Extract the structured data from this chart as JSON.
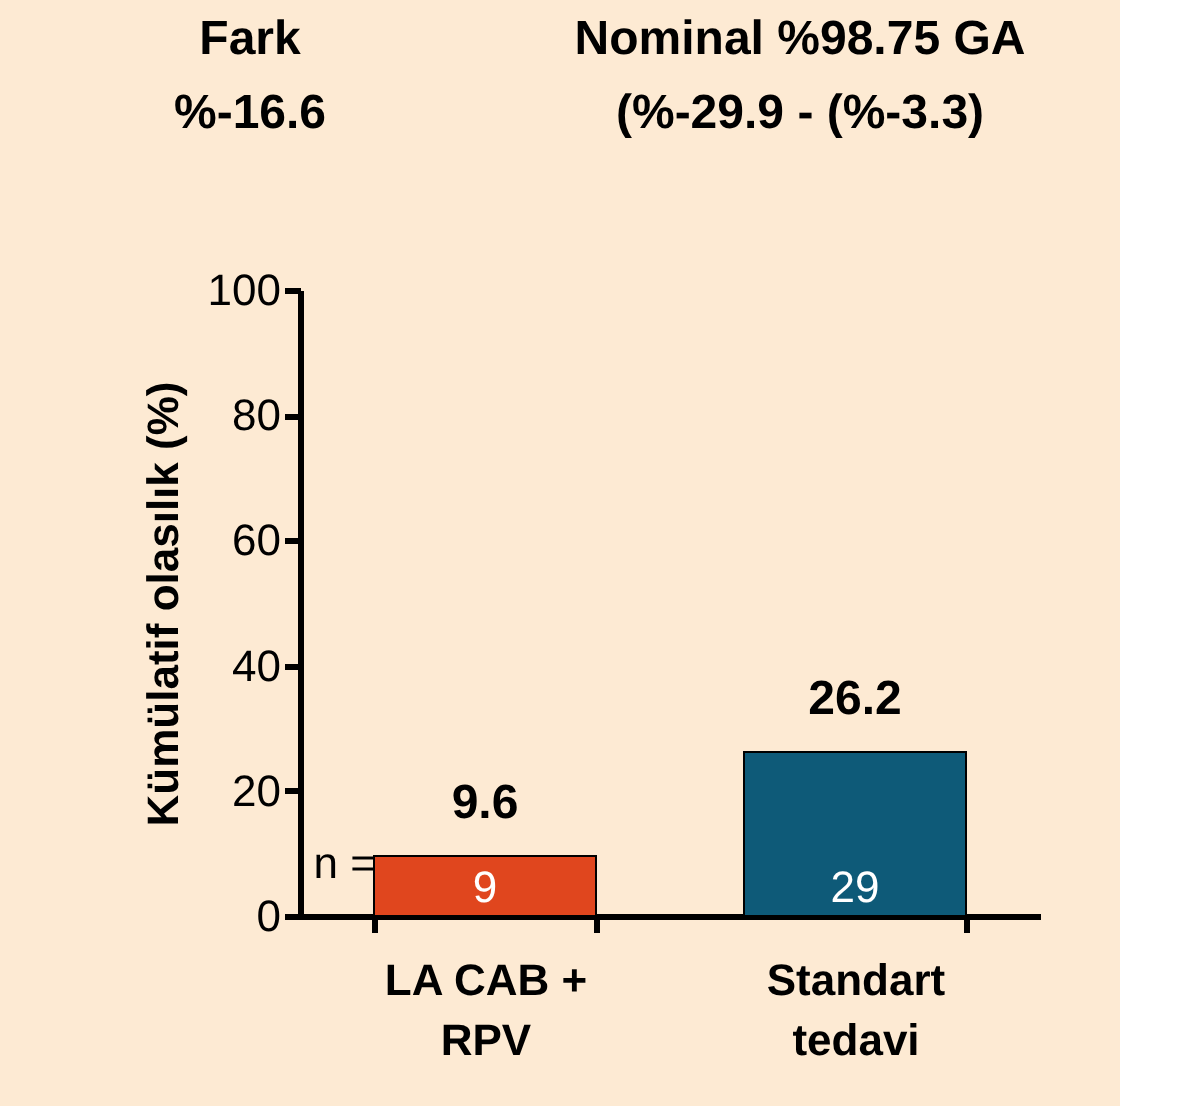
{
  "chart_data": {
    "type": "bar",
    "ylabel": "Kümülatif olasılık (%)",
    "categories": [
      "LA CAB + RPV",
      "Standart tedavi"
    ],
    "values": [
      9.6,
      26.2
    ],
    "colors": [
      "#e0461e",
      "#0e5a78"
    ],
    "ylim": [
      0,
      100
    ],
    "yticks": [
      0,
      20,
      40,
      60,
      80,
      100
    ],
    "data_labels": true,
    "grid": false,
    "annotations": [
      "Fark",
      "%-16.6",
      "Nominal %98.75 GA",
      "(%-29.9 - (%-3.3)",
      "n =",
      "9",
      "29"
    ]
  }
}
